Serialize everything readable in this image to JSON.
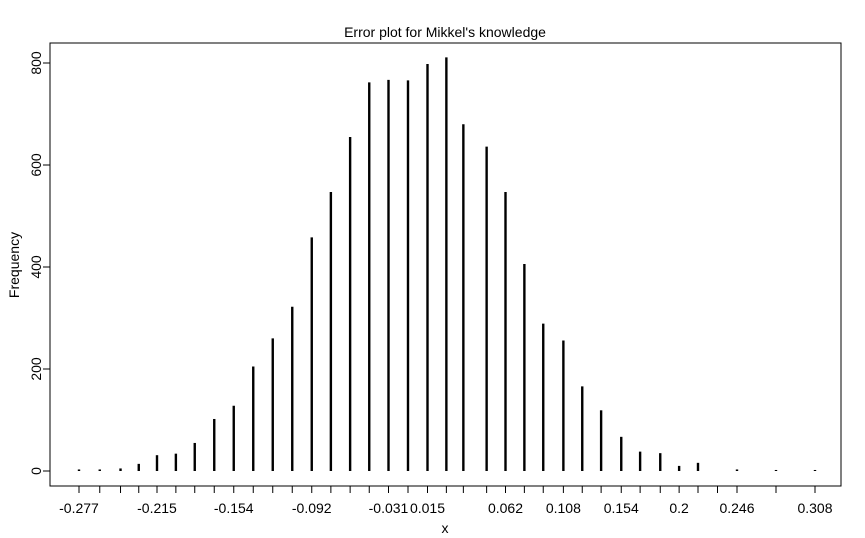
{
  "chart_data": {
    "type": "bar",
    "title": "Error plot for Mikkel's knowledge",
    "xlabel": "x",
    "ylabel": "Frequency",
    "ylim": [
      0,
      830
    ],
    "yticks": [
      0,
      200,
      400,
      600,
      800
    ],
    "grid": false,
    "x": [
      -0.277,
      -0.2605,
      -0.244,
      -0.2295,
      -0.215,
      -0.2,
      -0.185,
      -0.1695,
      -0.154,
      -0.1385,
      -0.123,
      -0.1075,
      -0.092,
      -0.0768,
      -0.0615,
      -0.0463,
      -0.031,
      -0.0155,
      0.0,
      0.015,
      0.0285,
      0.047,
      0.062,
      0.077,
      0.092,
      0.108,
      0.123,
      0.138,
      0.154,
      0.169,
      0.185,
      0.2,
      0.215,
      0.246,
      0.277,
      0.308
    ],
    "values": [
      3,
      3,
      5,
      14,
      31,
      34,
      55,
      102,
      128,
      205,
      260,
      322,
      458,
      547,
      655,
      762,
      767,
      766,
      798,
      811,
      680,
      636,
      547,
      406,
      289,
      256,
      166,
      119,
      67,
      38,
      35,
      10,
      16,
      3,
      2,
      2
    ],
    "xticks": [
      -0.277,
      -0.2605,
      -0.244,
      -0.2295,
      -0.215,
      -0.2,
      -0.185,
      -0.1695,
      -0.154,
      -0.1385,
      -0.123,
      -0.1075,
      -0.092,
      -0.0768,
      -0.0615,
      -0.0463,
      -0.031,
      -0.0155,
      0.0,
      0.015,
      0.0285,
      0.047,
      0.062,
      0.077,
      0.092,
      0.108,
      0.123,
      0.138,
      0.154,
      0.169,
      0.185,
      0.2,
      0.215,
      0.2305,
      0.246,
      0.277,
      0.308
    ],
    "xtick_labels": [
      "-0.277",
      "",
      "",
      "",
      "-0.215",
      "",
      "",
      "",
      "-0.154",
      "",
      "",
      "",
      "-0.092",
      "",
      "",
      "",
      "-0.031",
      "",
      "0.015",
      "",
      "",
      "",
      "0.062",
      "",
      "",
      "0.108",
      "",
      "",
      "0.154",
      "",
      "",
      "0.2",
      "",
      "",
      "0.246",
      "",
      "0.308"
    ]
  }
}
